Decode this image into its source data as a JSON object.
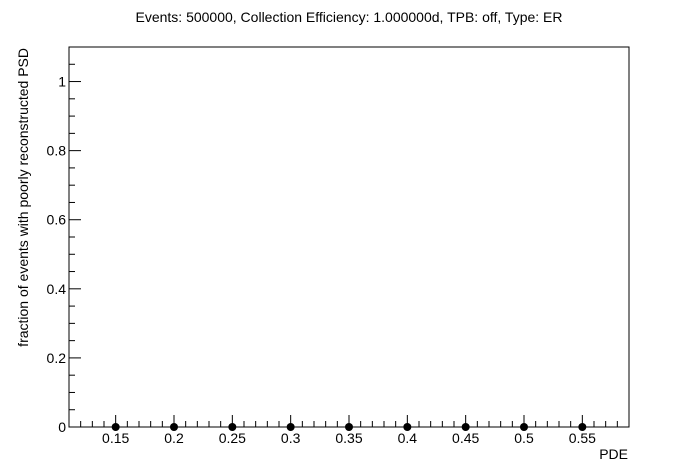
{
  "chart_data": {
    "type": "scatter",
    "title": "Events: 500000, Collection Efficiency: 1.000000d, TPB: off, Type: ER",
    "xlabel": "PDE",
    "ylabel": "fraction of events with poorly reconstructed PSD",
    "xlim": [
      0.11,
      0.59
    ],
    "ylim": [
      0,
      1.1
    ],
    "x_ticks": [
      0.15,
      0.2,
      0.25,
      0.3,
      0.35,
      0.4,
      0.45,
      0.5,
      0.55
    ],
    "x_tick_labels": [
      "0.15",
      "0.2",
      "0.25",
      "0.3",
      "0.35",
      "0.4",
      "0.45",
      "0.5",
      "0.55"
    ],
    "y_ticks": [
      0,
      0.2,
      0.4,
      0.6,
      0.8,
      1
    ],
    "y_tick_labels": [
      "0",
      "0.2",
      "0.4",
      "0.6",
      "0.8",
      "1"
    ],
    "grid": false,
    "legend": false,
    "marker_color": "#000000",
    "series": [
      {
        "x": [
          0.15,
          0.2,
          0.25,
          0.3,
          0.35,
          0.4,
          0.45,
          0.5,
          0.55
        ],
        "y": [
          0,
          0,
          0,
          0,
          0,
          0,
          0,
          0,
          0
        ]
      }
    ]
  }
}
